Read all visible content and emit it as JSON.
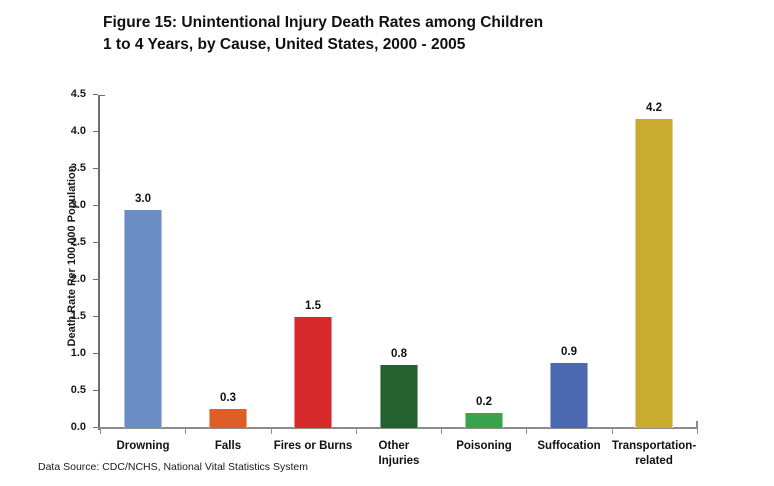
{
  "title": {
    "line1": "Figure 15: Unintentional Injury Death Rates among Children",
    "line2": "1 to 4 Years, by Cause, United States, 2000 - 2005"
  },
  "footer": "Data Source: CDC/NCHS, National Vital Statistics System",
  "chart_data": {
    "type": "bar",
    "title": "Figure 15: Unintentional Injury Death Rates among Children 1 to 4 Years, by Cause, United States, 2000 - 2005",
    "categories": [
      "Drowning",
      "Falls",
      "Fires or Burns",
      "Other Injuries",
      "Poisoning",
      "Suffocation",
      "Transportation-related"
    ],
    "values": [
      3.0,
      0.3,
      1.5,
      0.8,
      0.2,
      0.9,
      4.2
    ],
    "data_labels": [
      "3.0",
      "0.3",
      "1.5",
      "0.8",
      "0.2",
      "0.9",
      "4.2"
    ],
    "bar_display_values": [
      2.95,
      0.25,
      1.5,
      0.85,
      0.2,
      0.88,
      4.18
    ],
    "bar_colors": [
      "#6b8dc6",
      "#dd5f27",
      "#d7282b",
      "#23612e",
      "#38a24c",
      "#4b68b1",
      "#c8ab2f"
    ],
    "category_labels": [
      {
        "lines": "Drowning",
        "align": "center"
      },
      {
        "lines": "Falls",
        "align": "center"
      },
      {
        "lines": "Fires or Burns",
        "align": "center"
      },
      {
        "lines": "Other\nInjuries",
        "align": "left"
      },
      {
        "lines": "Poisoning",
        "align": "center"
      },
      {
        "lines": "Suffocation",
        "align": "center"
      },
      {
        "lines": "Transportation-\nrelated",
        "align": "center"
      }
    ],
    "xlabel": "",
    "ylabel": "Death Rate Per 100,000 Population",
    "ylim": [
      0,
      4.5
    ],
    "ytick_step": 0.5,
    "ytick_labels": [
      "0.0",
      "0.5",
      "1.0",
      "1.5",
      "2.0",
      "2.5",
      "3.0",
      "3.5",
      "4.0",
      "4.5"
    ],
    "grid": false,
    "legend": false,
    "axis_color_y": "#6e6e6e",
    "axis_color_x": "#8c8c8c"
  }
}
